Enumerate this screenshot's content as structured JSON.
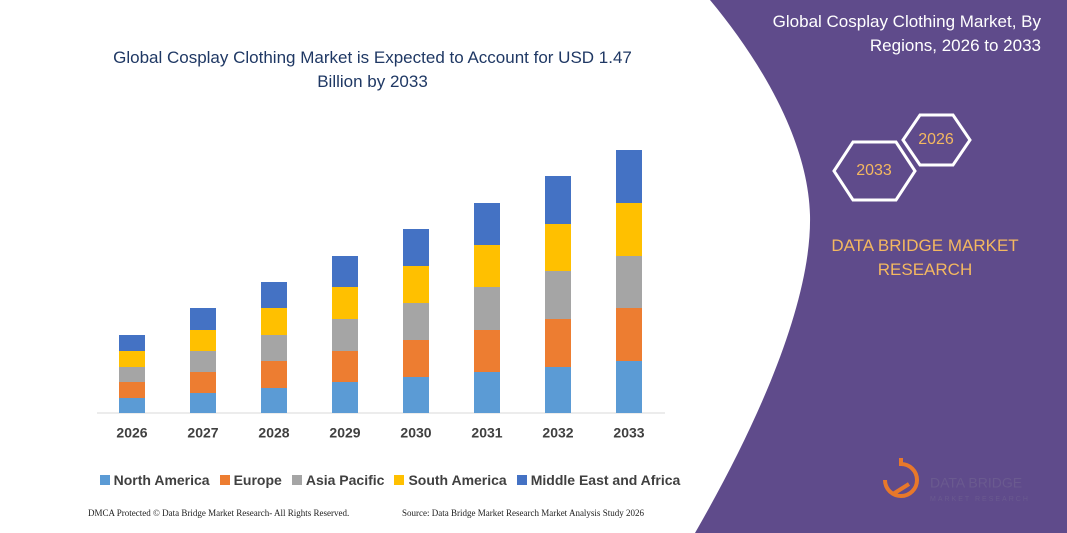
{
  "chart_data": {
    "type": "bar",
    "stacked": true,
    "title": "Global Cosplay Clothing Market is Expected to Account for USD 1.47 Billion by 2033",
    "categories": [
      "2026",
      "2027",
      "2028",
      "2029",
      "2030",
      "2031",
      "2032",
      "2033"
    ],
    "series": [
      {
        "name": "North America",
        "color": "#5b9bd5",
        "values": [
          15,
          20,
          25,
          31,
          36,
          41,
          46,
          52
        ]
      },
      {
        "name": "Europe",
        "color": "#ed7d31",
        "values": [
          16,
          21,
          27,
          31,
          37,
          42,
          48,
          53
        ]
      },
      {
        "name": "Asia Pacific",
        "color": "#a5a5a5",
        "values": [
          15,
          21,
          26,
          32,
          37,
          43,
          48,
          52
        ]
      },
      {
        "name": "South America",
        "color": "#ffc000",
        "values": [
          16,
          21,
          27,
          32,
          37,
          42,
          47,
          53
        ]
      },
      {
        "name": "Middle East and Africa",
        "color": "#4472c4",
        "values": [
          16,
          22,
          26,
          31,
          37,
          42,
          48,
          53
        ]
      }
    ]
  },
  "panel": {
    "title": "Global Cosplay Clothing Market, By Regions, 2026 to 2033",
    "hex_labels": [
      "2026",
      "2033"
    ],
    "brand": "DATA BRIDGE MARKET RESEARCH",
    "logo": {
      "name": "DATA BRIDGE",
      "tagline": "MARKET RESEARCH"
    }
  },
  "footer": {
    "left": "DMCA Protected © Data Bridge Market Research- All Rights Reserved.",
    "right": "Source: Data Bridge Market Research Market Analysis Study 2026"
  }
}
